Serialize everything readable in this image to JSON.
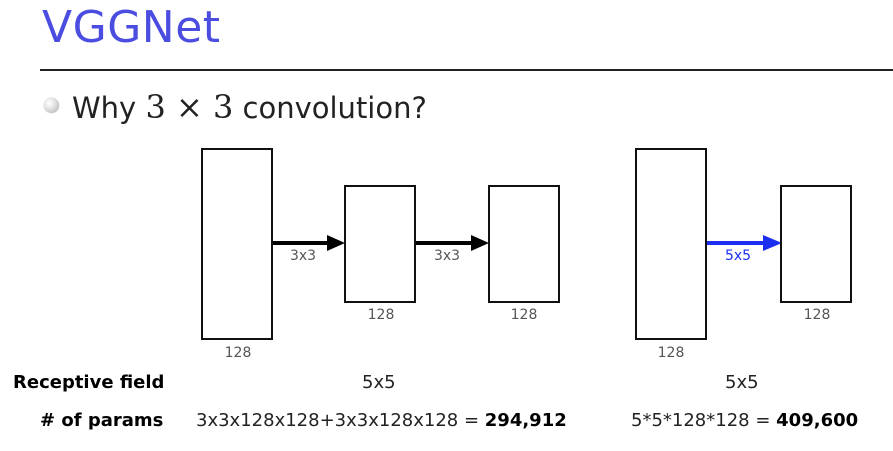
{
  "title": "VGGNet",
  "bullet": {
    "prefix": "Why",
    "math": "3 × 3",
    "suffix": "convolution?"
  },
  "colors": {
    "title": "#4b4de0",
    "arrow_black": "#000000",
    "arrow_blue": "#1c2ef2",
    "rule": "#222222"
  },
  "diagram_left": {
    "layer_channels": [
      "128",
      "128",
      "128"
    ],
    "arrow_labels": [
      "3x3",
      "3x3"
    ]
  },
  "diagram_right": {
    "layer_channels": [
      "128",
      "128"
    ],
    "arrow_label": "5x5"
  },
  "rows": {
    "receptive_field": {
      "label": "Receptive field",
      "left": "5x5",
      "right": "5x5"
    },
    "params": {
      "label": "# of params",
      "left_expr": "3x3x128x128+3x3x128x128 = ",
      "left_total": "294,912",
      "right_expr": "5*5*128*128 = ",
      "right_total": "409,600"
    }
  }
}
